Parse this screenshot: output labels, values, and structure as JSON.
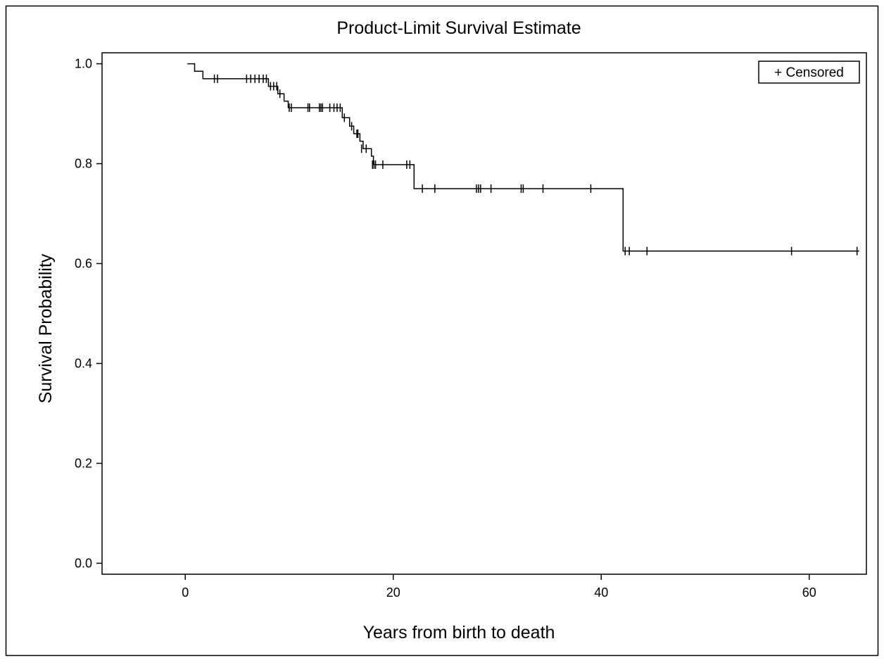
{
  "chart_data": {
    "type": "line",
    "title": "Product-Limit Survival Estimate",
    "xlabel": "Years from birth to death",
    "ylabel": "Survival Probability",
    "xlim": [
      -8,
      65.5
    ],
    "ylim": [
      -0.022,
      1.022
    ],
    "x_ticks": [
      0,
      20,
      40,
      60
    ],
    "x_tick_labels": [
      "0",
      "20",
      "40",
      "60"
    ],
    "y_ticks": [
      0,
      0.2,
      0.4,
      0.6,
      0.8,
      1.0
    ],
    "y_tick_labels": [
      "0.0",
      "0.2",
      "0.4",
      "0.6",
      "0.8",
      "1.0"
    ],
    "grid": false,
    "legend": {
      "label": "+ Censored",
      "position": "top-right"
    },
    "series": [
      {
        "steps": [
          [
            0.2,
            1.0
          ],
          [
            0.9,
            0.985
          ],
          [
            1.7,
            0.97
          ],
          [
            8.0,
            0.955
          ],
          [
            8.9,
            0.94
          ],
          [
            9.5,
            0.925
          ],
          [
            9.9,
            0.912
          ],
          [
            15.1,
            0.892
          ],
          [
            15.8,
            0.875
          ],
          [
            16.2,
            0.86
          ],
          [
            16.8,
            0.845
          ],
          [
            17.1,
            0.83
          ],
          [
            17.9,
            0.815
          ],
          [
            18.1,
            0.798
          ],
          [
            22.0,
            0.75
          ],
          [
            42.1,
            0.625
          ],
          [
            64.8,
            0.625
          ]
        ],
        "censored": [
          [
            2.8,
            0.97
          ],
          [
            3.1,
            0.97
          ],
          [
            5.9,
            0.97
          ],
          [
            6.3,
            0.97
          ],
          [
            6.7,
            0.97
          ],
          [
            7.1,
            0.97
          ],
          [
            7.5,
            0.97
          ],
          [
            7.8,
            0.97
          ],
          [
            8.2,
            0.955
          ],
          [
            8.5,
            0.955
          ],
          [
            8.8,
            0.955
          ],
          [
            9.1,
            0.94
          ],
          [
            10.0,
            0.912
          ],
          [
            10.2,
            0.912
          ],
          [
            11.8,
            0.912
          ],
          [
            11.95,
            0.912
          ],
          [
            12.9,
            0.912
          ],
          [
            13.05,
            0.912
          ],
          [
            13.2,
            0.912
          ],
          [
            13.9,
            0.912
          ],
          [
            14.3,
            0.912
          ],
          [
            14.6,
            0.912
          ],
          [
            14.9,
            0.912
          ],
          [
            15.3,
            0.892
          ],
          [
            16.0,
            0.875
          ],
          [
            16.5,
            0.86
          ],
          [
            16.6,
            0.86
          ],
          [
            16.95,
            0.83
          ],
          [
            17.4,
            0.83
          ],
          [
            18.0,
            0.798
          ],
          [
            18.15,
            0.798
          ],
          [
            18.3,
            0.798
          ],
          [
            19.0,
            0.798
          ],
          [
            21.3,
            0.798
          ],
          [
            21.6,
            0.798
          ],
          [
            22.8,
            0.75
          ],
          [
            24.0,
            0.75
          ],
          [
            28.0,
            0.75
          ],
          [
            28.2,
            0.75
          ],
          [
            28.4,
            0.75
          ],
          [
            29.4,
            0.75
          ],
          [
            32.3,
            0.75
          ],
          [
            32.5,
            0.75
          ],
          [
            34.4,
            0.75
          ],
          [
            39.0,
            0.75
          ],
          [
            42.3,
            0.625
          ],
          [
            42.7,
            0.625
          ],
          [
            44.4,
            0.625
          ],
          [
            58.3,
            0.625
          ],
          [
            64.6,
            0.625
          ]
        ]
      }
    ]
  }
}
